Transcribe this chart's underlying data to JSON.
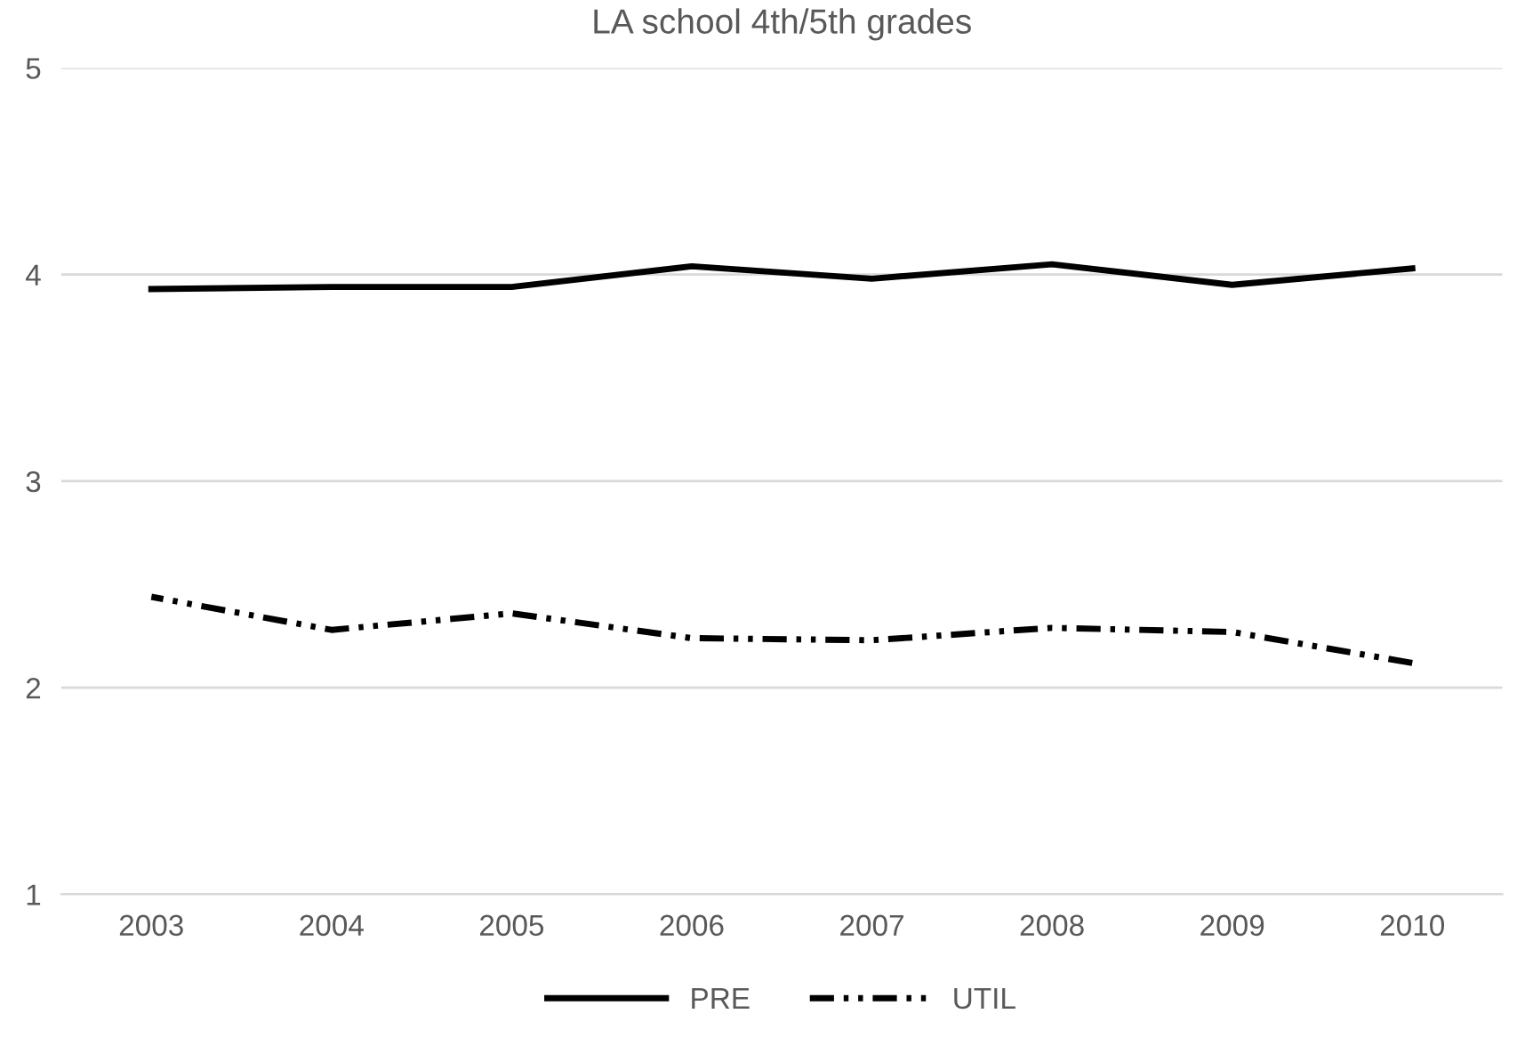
{
  "chart_data": {
    "type": "line",
    "title": "LA school 4th/5th grades",
    "categories": [
      "2003",
      "2004",
      "2005",
      "2006",
      "2007",
      "2008",
      "2009",
      "2010"
    ],
    "series": [
      {
        "name": "PRE",
        "color": "#000000",
        "line_style": "solid",
        "values": [
          3.93,
          3.94,
          3.94,
          4.04,
          3.98,
          4.05,
          3.95,
          4.03
        ]
      },
      {
        "name": "UTIL",
        "color": "#000000",
        "line_style": "dashdot",
        "values": [
          2.44,
          2.28,
          2.36,
          2.24,
          2.23,
          2.29,
          2.27,
          2.12
        ]
      }
    ],
    "ylim": [
      1,
      5
    ],
    "yticks": [
      1,
      2,
      3,
      4,
      5
    ],
    "grid": "y",
    "legend": "bottom",
    "marker": "none"
  }
}
